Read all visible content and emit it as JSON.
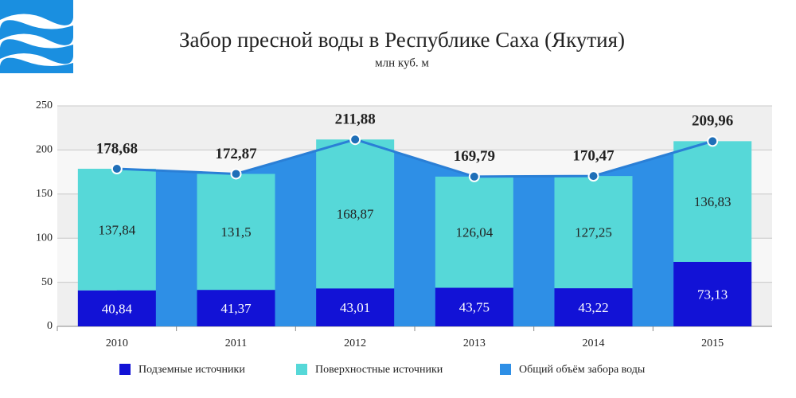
{
  "chart_data": {
    "type": "stacked-bar-line",
    "title": "Забор пресной воды в Республике Саха (Якутия)",
    "subtitle": "млн куб. м",
    "categories": [
      "2010",
      "2011",
      "2012",
      "2013",
      "2014",
      "2015"
    ],
    "series": [
      {
        "name": "Подземные источники",
        "color": "#1212d6",
        "values": [
          40.84,
          41.37,
          43.01,
          43.75,
          43.22,
          73.13
        ],
        "value_labels": [
          "40,84",
          "41,37",
          "43,01",
          "43,75",
          "43,22",
          "73,13"
        ]
      },
      {
        "name": "Поверхностные источники",
        "color": "#56d8d8",
        "values": [
          137.84,
          131.5,
          168.87,
          126.04,
          127.25,
          136.83
        ],
        "value_labels": [
          "137,84",
          "131,5",
          "168,87",
          "126,04",
          "127,25",
          "136,83"
        ]
      },
      {
        "name": "Общий объём забора воды",
        "color": "#2e8fe6",
        "type": "line",
        "values": [
          178.68,
          172.87,
          211.88,
          169.79,
          170.47,
          209.96
        ],
        "value_labels": [
          "178,68",
          "172,87",
          "211,88",
          "169,79",
          "170,47",
          "209,96"
        ]
      }
    ],
    "ylim": [
      0,
      250
    ],
    "yticks": [
      0,
      50,
      100,
      150,
      200,
      250
    ],
    "grid": true
  }
}
